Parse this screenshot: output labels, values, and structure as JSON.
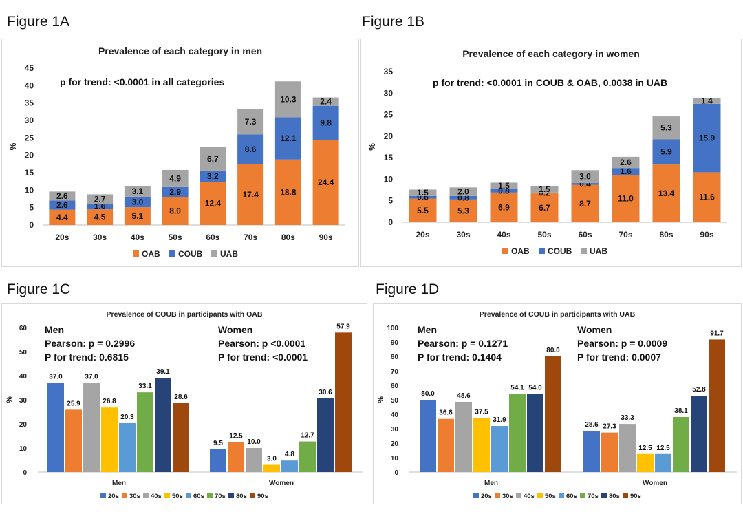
{
  "figure_labels": {
    "a": "Figure 1A",
    "b": "Figure 1B",
    "c": "Figure 1C",
    "d": "Figure 1D"
  },
  "colors": {
    "OAB": "#ED7D31",
    "COUB": "#4472C4",
    "UAB": "#A5A5A5",
    "20s": "#4472C4",
    "30s": "#ED7D31",
    "40s": "#A5A5A5",
    "50s": "#FFC000",
    "60s": "#5B9BD5",
    "70s": "#70AD47",
    "80s": "#264478",
    "90s": "#9E480E"
  },
  "chart_data": [
    {
      "type": "bar",
      "stacked": true,
      "title": "Prevalence of each category in men",
      "annotation": "p for trend: <0.0001 in all categories",
      "ylabel": "%",
      "ylim": [
        0,
        45
      ],
      "yticks": [
        0,
        5,
        10,
        15,
        20,
        25,
        30,
        35,
        40,
        45
      ],
      "categories": [
        "20s",
        "30s",
        "40s",
        "50s",
        "60s",
        "70s",
        "80s",
        "90s"
      ],
      "series": [
        {
          "name": "OAB",
          "values": [
            4.4,
            4.5,
            5.1,
            8.0,
            12.4,
            17.4,
            18.8,
            24.4
          ],
          "labels": [
            "4.4",
            "4.5",
            "5.1",
            "8.0",
            "12.4",
            "17.4",
            "18.8",
            "24.4"
          ]
        },
        {
          "name": "COUB",
          "values": [
            2.6,
            1.6,
            3.0,
            2.9,
            3.2,
            8.6,
            12.1,
            9.8
          ],
          "labels": [
            "2.6",
            "1.6",
            "3.0",
            "2.9",
            "3.2",
            "8.6",
            "12.1",
            "9.8"
          ]
        },
        {
          "name": "UAB",
          "values": [
            2.6,
            2.7,
            3.1,
            4.9,
            6.7,
            7.3,
            10.3,
            2.4
          ],
          "labels": [
            "2.6",
            "2.7",
            "3.1",
            "4.9",
            "6.7",
            "7.3",
            "10.3",
            "2.4"
          ]
        }
      ],
      "legend": [
        "OAB",
        "COUB",
        "UAB"
      ],
      "legend_position": "bottom"
    },
    {
      "type": "bar",
      "stacked": true,
      "title": "Prevalence of each category in women",
      "annotation": "p for trend: <0.0001 in COUB & OAB, 0.0038 in UAB",
      "ylabel": "%",
      "ylim": [
        0,
        35
      ],
      "yticks": [
        0,
        5,
        10,
        15,
        20,
        25,
        30,
        35
      ],
      "categories": [
        "20s",
        "30s",
        "40s",
        "50s",
        "60s",
        "70s",
        "80s",
        "90s"
      ],
      "series": [
        {
          "name": "OAB",
          "values": [
            5.5,
            5.3,
            6.9,
            6.7,
            8.7,
            11.0,
            13.4,
            11.6
          ],
          "labels": [
            "5.5",
            "5.3",
            "6.9",
            "6.7",
            "8.7",
            "11.0",
            "13.4",
            "11.6"
          ]
        },
        {
          "name": "COUB",
          "values": [
            0.6,
            0.8,
            0.8,
            0.2,
            0.4,
            1.6,
            5.9,
            15.9
          ],
          "labels": [
            "0.6",
            "0.8",
            "0.8",
            "0.2",
            "0.4",
            "1.6",
            "5.9",
            "15.9"
          ]
        },
        {
          "name": "UAB",
          "values": [
            1.5,
            2.0,
            1.5,
            1.5,
            3.0,
            2.6,
            5.3,
            1.4
          ],
          "labels": [
            "1.5",
            "2.0",
            "1.5",
            "1.5",
            "3.0",
            "2.6",
            "5.3",
            "1.4"
          ]
        }
      ],
      "legend": [
        "OAB",
        "COUB",
        "UAB"
      ],
      "legend_position": "bottom"
    },
    {
      "type": "bar",
      "stacked": false,
      "title": "Prevalence of COUB in participants with OAB",
      "ylabel": "%",
      "ylim": [
        0,
        60
      ],
      "yticks": [
        0,
        10,
        20,
        30,
        40,
        50,
        60
      ],
      "categories": [
        "Men",
        "Women"
      ],
      "group_notes": [
        {
          "heading": "Men",
          "lines": [
            "Pearson: p = 0.2996",
            "P for trend: 0.6815"
          ]
        },
        {
          "heading": "Women",
          "lines": [
            "Pearson: p <0.0001",
            "P for trend: <0.0001"
          ]
        }
      ],
      "series": [
        {
          "name": "20s",
          "values": [
            37.0,
            9.5
          ],
          "labels": [
            "37.0",
            "9.5"
          ]
        },
        {
          "name": "30s",
          "values": [
            25.9,
            12.5
          ],
          "labels": [
            "25.9",
            "12.5"
          ]
        },
        {
          "name": "40s",
          "values": [
            37.0,
            10.0
          ],
          "labels": [
            "37.0",
            "10.0"
          ]
        },
        {
          "name": "50s",
          "values": [
            26.8,
            3.0
          ],
          "labels": [
            "26.8",
            "3.0"
          ]
        },
        {
          "name": "60s",
          "values": [
            20.3,
            4.8
          ],
          "labels": [
            "20.3",
            "4.8"
          ]
        },
        {
          "name": "70s",
          "values": [
            33.1,
            12.7
          ],
          "labels": [
            "33.1",
            "12.7"
          ]
        },
        {
          "name": "80s",
          "values": [
            39.1,
            30.6
          ],
          "labels": [
            "39.1",
            "30.6"
          ]
        },
        {
          "name": "90s",
          "values": [
            28.6,
            57.9
          ],
          "labels": [
            "28.6",
            "57.9"
          ]
        }
      ],
      "legend": [
        "20s",
        "30s",
        "40s",
        "50s",
        "60s",
        "70s",
        "80s",
        "90s"
      ],
      "legend_position": "bottom"
    },
    {
      "type": "bar",
      "stacked": false,
      "title": "Prevalence of COUB in participants with UAB",
      "ylabel": "%",
      "ylim": [
        0,
        100
      ],
      "yticks": [
        0,
        10,
        20,
        30,
        40,
        50,
        60,
        70,
        80,
        90,
        100
      ],
      "categories": [
        "Men",
        "Women"
      ],
      "group_notes": [
        {
          "heading": "Men",
          "lines": [
            "Pearson: p = 0.1271",
            "P for trend: 0.1404"
          ]
        },
        {
          "heading": "Women",
          "lines": [
            "Pearson: p = 0.0009",
            "P for trend: 0.0007"
          ]
        }
      ],
      "series": [
        {
          "name": "20s",
          "values": [
            50.0,
            28.6
          ],
          "labels": [
            "50.0",
            "28.6"
          ]
        },
        {
          "name": "30s",
          "values": [
            36.8,
            27.3
          ],
          "labels": [
            "36.8",
            "27.3"
          ]
        },
        {
          "name": "40s",
          "values": [
            48.6,
            33.3
          ],
          "labels": [
            "48.6",
            "33.3"
          ]
        },
        {
          "name": "50s",
          "values": [
            37.5,
            12.5
          ],
          "labels": [
            "37.5",
            "12.5"
          ]
        },
        {
          "name": "60s",
          "values": [
            31.9,
            12.5
          ],
          "labels": [
            "31.9",
            "12.5"
          ]
        },
        {
          "name": "70s",
          "values": [
            54.1,
            38.1
          ],
          "labels": [
            "54.1",
            "38.1"
          ]
        },
        {
          "name": "80s",
          "values": [
            54.0,
            52.8
          ],
          "labels": [
            "54.0",
            "52.8"
          ]
        },
        {
          "name": "90s",
          "values": [
            80.0,
            91.7
          ],
          "labels": [
            "80.0",
            "91.7"
          ]
        }
      ],
      "legend": [
        "20s",
        "30s",
        "40s",
        "50s",
        "60s",
        "70s",
        "80s",
        "90s"
      ],
      "legend_position": "bottom"
    }
  ]
}
